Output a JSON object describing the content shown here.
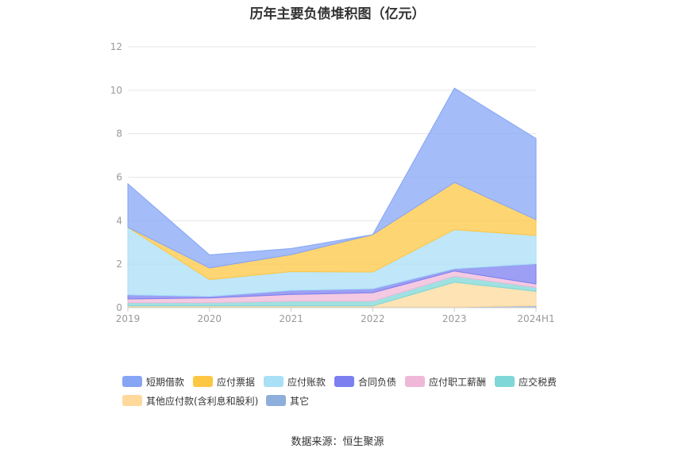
{
  "chart_data": {
    "type": "area",
    "stacked": true,
    "title": "历年主要负债堆积图（亿元）",
    "categories": [
      "2019",
      "2020",
      "2021",
      "2022",
      "2023",
      "2024H1"
    ],
    "ylim": [
      0,
      12
    ],
    "yticks": [
      "0",
      "2",
      "4",
      "6",
      "8",
      "10",
      "12"
    ],
    "grid": true,
    "legend_position": "bottom",
    "series": [
      {
        "name": "其它",
        "color": "#8eaedb",
        "values": [
          0.03,
          0.03,
          0.03,
          0.03,
          0.03,
          0.09
        ]
      },
      {
        "name": "其他应付款(含利息和股利)",
        "color": "#fed99b",
        "values": [
          0.05,
          0.05,
          0.05,
          0.05,
          1.14,
          0.66
        ]
      },
      {
        "name": "应交税费",
        "color": "#7fd7d7",
        "values": [
          0.15,
          0.15,
          0.22,
          0.22,
          0.28,
          0.18
        ]
      },
      {
        "name": "应付职工薪酬",
        "color": "#f0b8d8",
        "values": [
          0.17,
          0.22,
          0.31,
          0.39,
          0.24,
          0.16
        ]
      },
      {
        "name": "合同负债",
        "color": "#7b7ff0",
        "values": [
          0.19,
          0.07,
          0.19,
          0.18,
          0.1,
          0.93
        ]
      },
      {
        "name": "应付账款",
        "color": "#a9dff7",
        "values": [
          3.11,
          0.77,
          0.86,
          0.77,
          1.8,
          1.3
        ]
      },
      {
        "name": "应付票据",
        "color": "#fdc744",
        "values": [
          0,
          0.54,
          0.78,
          1.72,
          2.17,
          0.73
        ]
      },
      {
        "name": "短期借款",
        "color": "#86a5f5",
        "values": [
          2.0,
          0.6,
          0.28,
          0.0,
          4.34,
          3.73
        ]
      }
    ]
  },
  "legend": {
    "items": [
      {
        "name": "短期借款",
        "color": "#86a5f5"
      },
      {
        "name": "应付票据",
        "color": "#fdc744"
      },
      {
        "name": "应付账款",
        "color": "#a9dff7"
      },
      {
        "name": "合同负债",
        "color": "#7b7ff0"
      },
      {
        "name": "应付职工薪酬",
        "color": "#f0b8d8"
      },
      {
        "name": "应交税费",
        "color": "#7fd7d7"
      },
      {
        "name": "其他应付款(含利息和股利)",
        "color": "#fed99b"
      },
      {
        "name": "其它",
        "color": "#8eaedb"
      }
    ]
  },
  "source": "数据来源：恒生聚源"
}
